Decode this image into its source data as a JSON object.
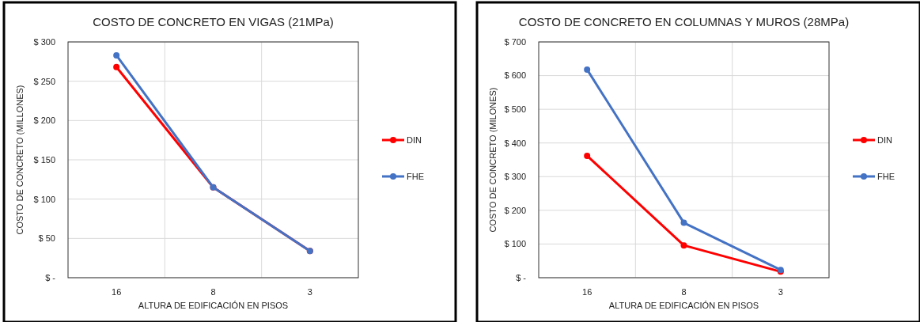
{
  "chart_data": [
    {
      "type": "line",
      "title": "COSTO DE CONCRETO EN VIGAS (21MPa)",
      "xlabel": "ALTURA DE EDIFICACIÓN EN PISOS",
      "ylabel": "COSTO DE CONCRETO (MILLONES)",
      "categories": [
        "16",
        "8",
        "3"
      ],
      "series": [
        {
          "name": "DIN",
          "color": "#ff0000",
          "values": [
            268,
            115,
            34
          ]
        },
        {
          "name": "FHE",
          "color": "#4472c4",
          "values": [
            283,
            115,
            34
          ]
        }
      ],
      "ylim": [
        0,
        300
      ],
      "yticks": [
        {
          "value": 0,
          "label": "$ -"
        },
        {
          "value": 50,
          "label": "$ 50"
        },
        {
          "value": 100,
          "label": "$ 100"
        },
        {
          "value": 150,
          "label": "$ 150"
        },
        {
          "value": 200,
          "label": "$ 200"
        },
        {
          "value": 250,
          "label": "$ 250"
        },
        {
          "value": 300,
          "label": "$ 300"
        }
      ],
      "grid": true,
      "legend": "right",
      "marker": "circle",
      "line_style": "solid"
    },
    {
      "type": "line",
      "title": "COSTO DE CONCRETO EN COLUMNAS Y MUROS (28MPa)",
      "xlabel": "ALTURA DE EDIFICACIÓN EN PISOS",
      "ylabel": "COSTO DE CONCRETO (MILONES)",
      "categories": [
        "16",
        "8",
        "3"
      ],
      "series": [
        {
          "name": "DIN",
          "color": "#ff0000",
          "values": [
            362,
            96,
            18
          ]
        },
        {
          "name": "FHE",
          "color": "#4472c4",
          "values": [
            618,
            163,
            23
          ]
        }
      ],
      "ylim": [
        0,
        700
      ],
      "yticks": [
        {
          "value": 0,
          "label": "$ -"
        },
        {
          "value": 100,
          "label": "$ 100"
        },
        {
          "value": 200,
          "label": "$ 200"
        },
        {
          "value": 300,
          "label": "$ 300"
        },
        {
          "value": 400,
          "label": "$ 400"
        },
        {
          "value": 500,
          "label": "$ 500"
        },
        {
          "value": 600,
          "label": "$ 600"
        },
        {
          "value": 700,
          "label": "$ 700"
        }
      ],
      "grid": true,
      "legend": "right",
      "marker": "circle",
      "line_style": "solid"
    }
  ]
}
